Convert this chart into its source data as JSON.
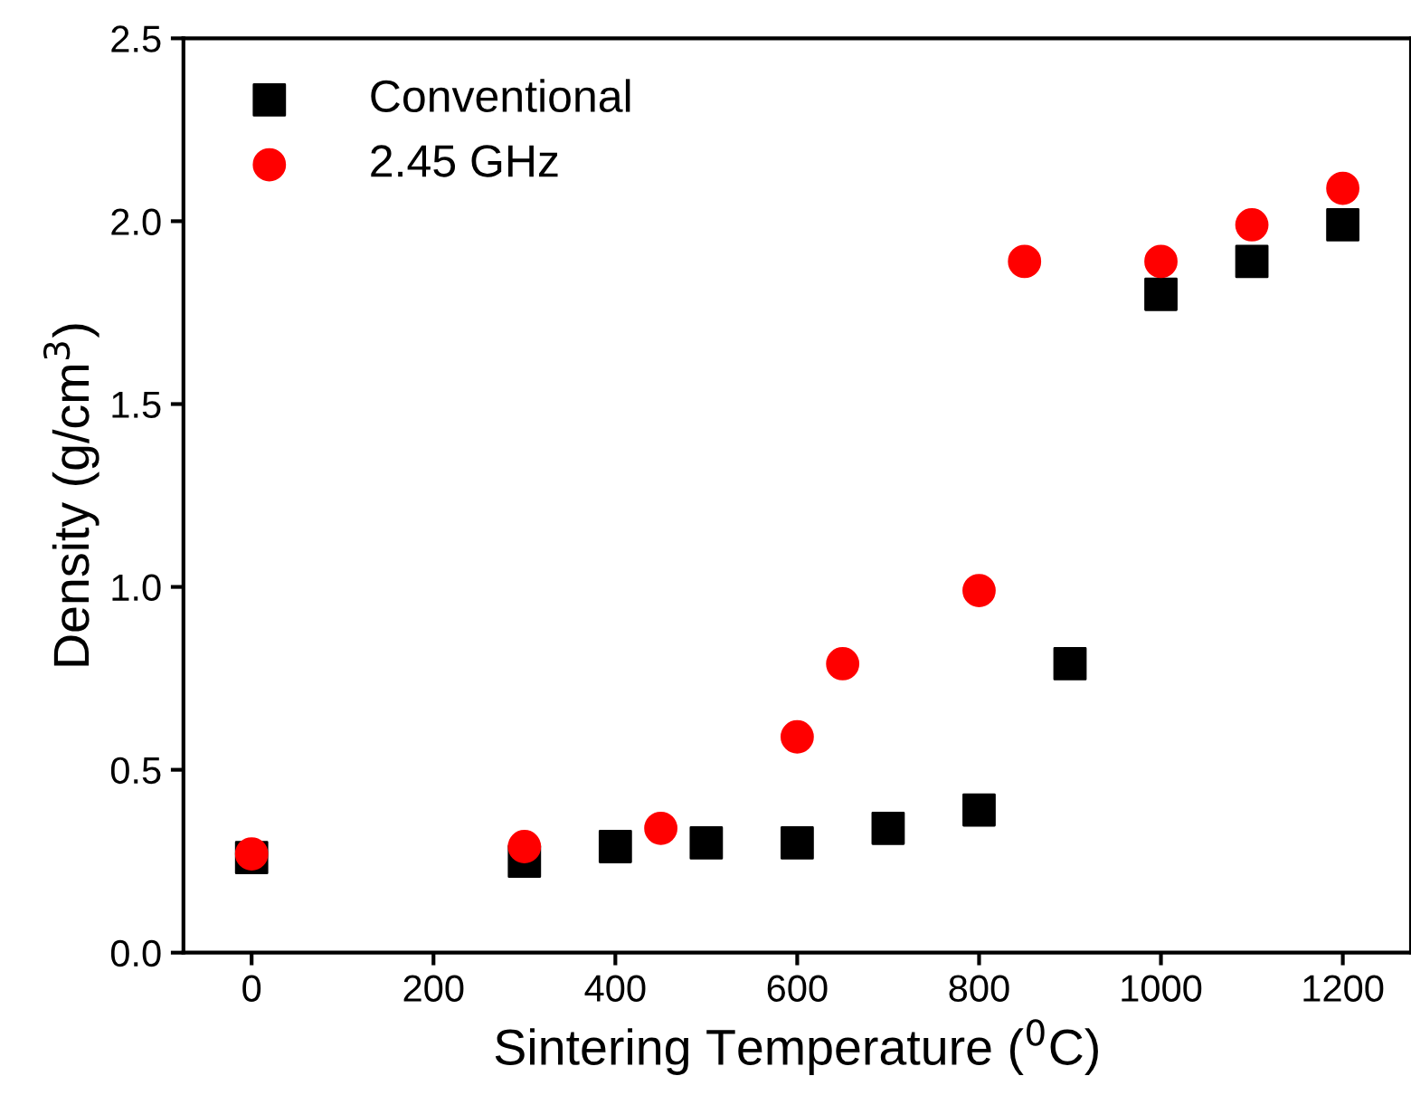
{
  "chart_data": {
    "type": "scatter",
    "xlabel": "Sintering Temperature ($^{0}$C)",
    "ylabel": "Density (g/cm$^{3}$)",
    "xlim": [
      -75,
      1275
    ],
    "xticks": [
      0,
      200,
      400,
      600,
      800,
      1000,
      1200
    ],
    "ylim": [
      0,
      2.5
    ],
    "yticks": [
      {
        "value": 0,
        "label": "0.0"
      },
      0.5,
      {
        "value": 1,
        "label": "1.0"
      },
      1.5,
      {
        "value": 2,
        "label": "2.0"
      },
      2.5
    ],
    "grid": false,
    "legend": "top left",
    "series": [
      {
        "name": "Conventional",
        "color": "#000000",
        "marker": "square",
        "x": [
          0,
          300,
          400,
          500,
          600,
          700,
          800,
          900,
          1000,
          1100,
          1200
        ],
        "values": [
          0.26,
          0.25,
          0.29,
          0.3,
          0.3,
          0.34,
          0.39,
          0.79,
          1.8,
          1.89,
          1.99
        ]
      },
      {
        "name": "2.45 GHz",
        "color": "#ff0000",
        "marker": "circle",
        "x": [
          0,
          300,
          450,
          600,
          650,
          800,
          850,
          1000,
          1100,
          1200
        ],
        "values": [
          0.27,
          0.29,
          0.34,
          0.59,
          0.79,
          0.99,
          1.89,
          1.89,
          1.99,
          2.09
        ]
      }
    ]
  }
}
